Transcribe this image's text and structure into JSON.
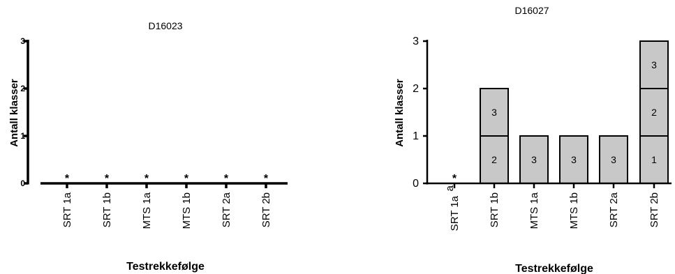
{
  "chart_data": [
    {
      "type": "bar",
      "stacked": true,
      "title": "D16023",
      "xlabel": "Testrekkefølge",
      "ylabel": "Antall klasser",
      "ylim": [
        0,
        3
      ],
      "yticks": [
        "0",
        "1",
        "2",
        "3"
      ],
      "ytick_bold": true,
      "categories": [
        "SRT 1a",
        "SRT 1b",
        "MTS 1a",
        "MTS 1b",
        "SRT 2a",
        "SRT 2b"
      ],
      "category_superscripts": [
        "",
        "",
        "",
        "",
        "",
        ""
      ],
      "stacks": [
        [],
        [],
        [],
        [],
        [],
        []
      ],
      "markers": [
        "*",
        "*",
        "*",
        "*",
        "*",
        "*"
      ],
      "bar_color": "#c8c8c8"
    },
    {
      "type": "bar",
      "stacked": true,
      "title": "D16027",
      "xlabel": "Testrekkefølge",
      "ylabel": "Antall klasser",
      "ylim": [
        0,
        3
      ],
      "yticks": [
        "0",
        "1",
        "2",
        "3"
      ],
      "ytick_bold": false,
      "categories": [
        "SRT 1a",
        "SRT 1b",
        "MTS 1a",
        "MTS 1b",
        "SRT 2a",
        "SRT 2b"
      ],
      "category_superscripts": [
        "a",
        "",
        "",
        "",
        "",
        ""
      ],
      "stacks": [
        [],
        [
          "2",
          "3"
        ],
        [
          "3"
        ],
        [
          "3"
        ],
        [
          "3"
        ],
        [
          "1",
          "2",
          "3"
        ]
      ],
      "markers": [
        "*",
        "",
        "",
        "",
        "",
        ""
      ],
      "bar_color": "#c8c8c8"
    }
  ]
}
